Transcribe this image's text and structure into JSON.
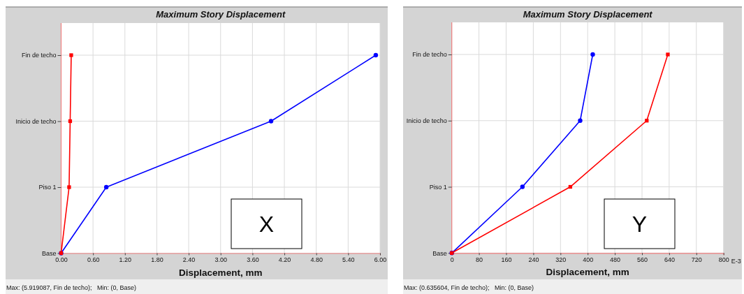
{
  "chart_data": [
    {
      "type": "line",
      "orientation": "horizontal",
      "title": "Maximum Story Displacement",
      "xlabel": "Displacement, mm",
      "xlim": [
        0,
        6
      ],
      "xticks": [
        {
          "value": 0,
          "label": "0.00"
        },
        {
          "value": 0.6,
          "label": "0.60"
        },
        {
          "value": 1.2,
          "label": "1.20"
        },
        {
          "value": 1.8,
          "label": "1.80"
        },
        {
          "value": 2.4,
          "label": "2.40"
        },
        {
          "value": 3,
          "label": "3.00"
        },
        {
          "value": 3.6,
          "label": "3.60"
        },
        {
          "value": 4.2,
          "label": "4.20"
        },
        {
          "value": 4.8,
          "label": "4.80"
        },
        {
          "value": 5.4,
          "label": "5.40"
        },
        {
          "value": 6,
          "label": "6.00"
        }
      ],
      "categories": [
        "Fin de techo",
        "Inicio de techo",
        "Piso 1",
        "Base"
      ],
      "grid": true,
      "line_style": "solid",
      "series": [
        {
          "color": "#0000ff",
          "marker": "circle",
          "values": [
            5.92,
            3.95,
            0.85,
            0
          ]
        },
        {
          "color": "#ff0000",
          "marker": "square",
          "values": [
            0.19,
            0.17,
            0.15,
            0
          ]
        }
      ],
      "annotations": [
        "X",
        "Max: (5.919087, Fin de techo);   Min: (0, Base)"
      ]
    },
    {
      "type": "line",
      "orientation": "horizontal",
      "title": "Maximum Story Displacement",
      "xlabel": "Displacement, mm",
      "xlim": [
        0,
        800
      ],
      "xticks": [
        0,
        80,
        160,
        240,
        320,
        400,
        480,
        560,
        640,
        720,
        800
      ],
      "categories": [
        "Fin de techo",
        "Inicio de techo",
        "Piso 1",
        "Base"
      ],
      "grid": true,
      "line_style": "solid",
      "series": [
        {
          "color": "#0000ff",
          "marker": "circle",
          "values": [
            415,
            378,
            208,
            0
          ]
        },
        {
          "color": "#ff0000",
          "marker": "square",
          "values": [
            636,
            574,
            349,
            0
          ]
        }
      ],
      "annotations": [
        "Y",
        "E-3",
        "Max: (0.635604, Fin de techo);   Min: (0, Base)"
      ]
    }
  ]
}
